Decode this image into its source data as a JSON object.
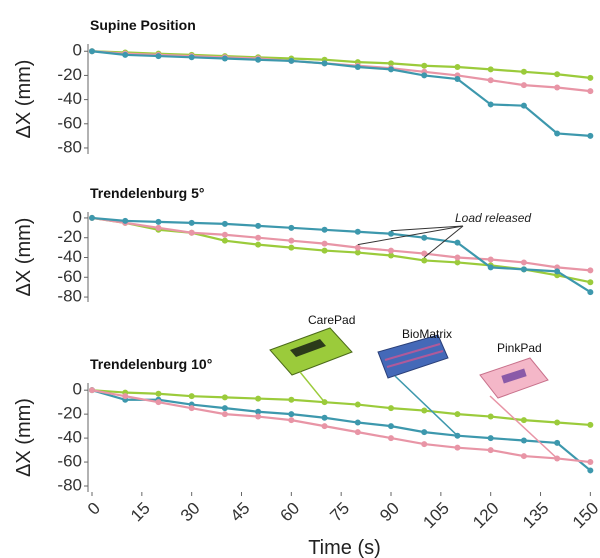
{
  "chart_data": [
    {
      "type": "line",
      "title": "Supine Position",
      "ylabel": "ΔX (mm)",
      "x": [
        0,
        10,
        20,
        30,
        40,
        50,
        60,
        70,
        80,
        90,
        100,
        110,
        120,
        130,
        140,
        150
      ],
      "xlim": [
        0,
        152
      ],
      "ylim": [
        -85,
        6
      ],
      "yticks": [
        0,
        -20,
        -40,
        -60,
        -80
      ],
      "series": [
        {
          "name": "CarePad",
          "color": "#9bcb3b",
          "values": [
            0,
            -1,
            -2,
            -3,
            -4,
            -5,
            -6,
            -7,
            -9,
            -10,
            -12,
            -13,
            -15,
            -17,
            -19,
            -22
          ]
        },
        {
          "name": "PinkPad",
          "color": "#e895a6",
          "values": [
            0,
            -2,
            -3,
            -4,
            -5,
            -6,
            -8,
            -10,
            -12,
            -14,
            -17,
            -20,
            -24,
            -28,
            -30,
            -33
          ]
        },
        {
          "name": "BioMatrix",
          "color": "#3d98ad",
          "values": [
            0,
            -3,
            -4,
            -5,
            -6,
            -7,
            -8,
            -10,
            -13,
            -15,
            -20,
            -23,
            -44,
            -45,
            -68,
            -70
          ]
        }
      ]
    },
    {
      "type": "line",
      "title": "Trendelenburg 5°",
      "ylabel": "ΔX (mm)",
      "annotation": "Load released",
      "x": [
        0,
        10,
        20,
        30,
        40,
        50,
        60,
        70,
        80,
        90,
        100,
        110,
        120,
        130,
        140,
        150
      ],
      "xlim": [
        0,
        152
      ],
      "ylim": [
        -85,
        6
      ],
      "yticks": [
        0,
        -20,
        -40,
        -60,
        -80
      ],
      "series": [
        {
          "name": "CarePad",
          "color": "#9bcb3b",
          "values": [
            0,
            -5,
            -12,
            -15,
            -23,
            -27,
            -30,
            -33,
            -35,
            -38,
            -43,
            -45,
            -48,
            -52,
            -58,
            -65
          ]
        },
        {
          "name": "PinkPad",
          "color": "#e895a6",
          "values": [
            0,
            -5,
            -10,
            -15,
            -17,
            -20,
            -23,
            -26,
            -30,
            -33,
            -36,
            -40,
            -42,
            -45,
            -50,
            -53
          ]
        },
        {
          "name": "BioMatrix",
          "color": "#3d98ad",
          "values": [
            0,
            -3,
            -4,
            -5,
            -6,
            -8,
            -10,
            -12,
            -14,
            -16,
            -20,
            -25,
            -50,
            -52,
            -54,
            -75
          ]
        }
      ]
    },
    {
      "type": "line",
      "title": "Trendelenburg 10°",
      "ylabel": "ΔX (mm)",
      "xlabel": "Time (s)",
      "x": [
        0,
        10,
        20,
        30,
        40,
        50,
        60,
        70,
        80,
        90,
        100,
        110,
        120,
        130,
        140,
        150
      ],
      "xlim": [
        0,
        152
      ],
      "ylim": [
        -85,
        6
      ],
      "yticks": [
        0,
        -20,
        -40,
        -60,
        -80
      ],
      "xticks": [
        0,
        15,
        30,
        45,
        60,
        75,
        90,
        105,
        120,
        135,
        150
      ],
      "series": [
        {
          "name": "CarePad",
          "color": "#9bcb3b",
          "values": [
            0,
            -2,
            -3,
            -5,
            -6,
            -7,
            -8,
            -10,
            -12,
            -15,
            -17,
            -20,
            -22,
            -25,
            -27,
            -29
          ]
        },
        {
          "name": "BioMatrix",
          "color": "#3d98ad",
          "values": [
            0,
            -8,
            -8,
            -12,
            -15,
            -18,
            -20,
            -23,
            -27,
            -30,
            -35,
            -38,
            -40,
            -42,
            -44,
            -67
          ]
        },
        {
          "name": "PinkPad",
          "color": "#e895a6",
          "values": [
            0,
            -5,
            -10,
            -15,
            -20,
            -22,
            -25,
            -30,
            -35,
            -40,
            -45,
            -48,
            -50,
            -55,
            -57,
            -60
          ]
        }
      ]
    }
  ]
}
